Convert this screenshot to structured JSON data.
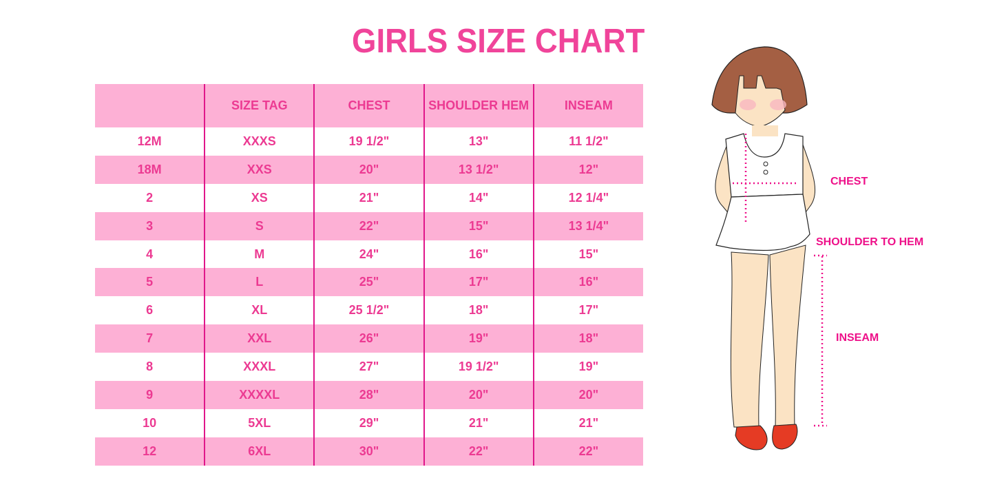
{
  "title": "GIRLS SIZE CHART",
  "colors": {
    "accent": "#f0449a",
    "row_pink": "#fdb0d5",
    "divider": "#e0168a"
  },
  "table": {
    "headers": [
      "",
      "SIZE TAG",
      "CHEST",
      "SHOULDER HEM",
      "INSEAM"
    ],
    "rows": [
      [
        "12M",
        "XXXS",
        "19 1/2\"",
        "13\"",
        "11 1/2\""
      ],
      [
        "18M",
        "XXS",
        "20\"",
        "13 1/2\"",
        "12\""
      ],
      [
        "2",
        "XS",
        "21\"",
        "14\"",
        "12 1/4\""
      ],
      [
        "3",
        "S",
        "22\"",
        "15\"",
        "13 1/4\""
      ],
      [
        "4",
        "M",
        "24\"",
        "16\"",
        "15\""
      ],
      [
        "5",
        "L",
        "25\"",
        "17\"",
        "16\""
      ],
      [
        "6",
        "XL",
        "25 1/2\"",
        "18\"",
        "17\""
      ],
      [
        "7",
        "XXL",
        "26\"",
        "19\"",
        "18\""
      ],
      [
        "8",
        "XXXL",
        "27\"",
        "19 1/2\"",
        "19\""
      ],
      [
        "9",
        "XXXXL",
        "28\"",
        "20\"",
        "20\""
      ],
      [
        "10",
        "5XL",
        "29\"",
        "21\"",
        "21\""
      ],
      [
        "12",
        "6XL",
        "30\"",
        "22\"",
        "22\""
      ]
    ]
  },
  "illustration": {
    "labels": {
      "chest": "CHEST",
      "shoulder_to_hem": "SHOULDER TO HEM",
      "inseam": "INSEAM"
    }
  }
}
